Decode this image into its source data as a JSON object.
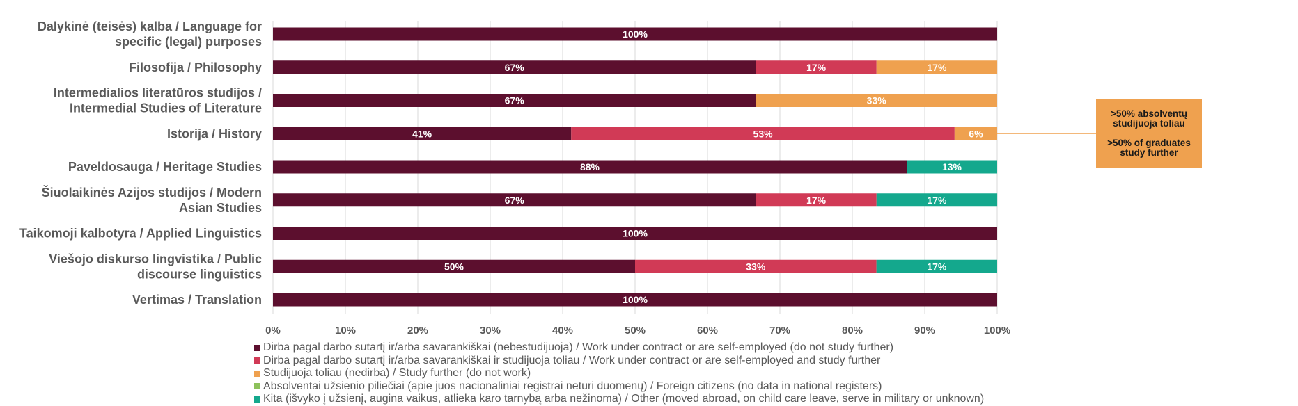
{
  "chart_data": {
    "type": "bar",
    "orientation": "horizontal",
    "stacked": "percent",
    "categories": [
      "Dalykinė (teisės) kalba / Language for specific (legal) purposes",
      "Filosofija / Philosophy",
      "Intermedialios literatūros studijos / Intermedial Studies of Literature",
      "Istorija / History",
      "Paveldosauga / Heritage Studies",
      "Šiuolaikinės Azijos studijos / Modern Asian Studies",
      "Taikomoji kalbotyra / Applied Linguistics",
      "Viešojo diskurso lingvistika / Public discourse linguistics",
      "Vertimas / Translation"
    ],
    "category_lines": [
      [
        "Dalykinė (teisės) kalba / Language for",
        "specific (legal) purposes"
      ],
      [
        "Filosofija / Philosophy"
      ],
      [
        "Intermedialios literatūros studijos /",
        "Intermedial Studies of Literature"
      ],
      [
        "Istorija / History"
      ],
      [
        "Paveldosauga / Heritage Studies"
      ],
      [
        "Šiuolaikinės Azijos studijos / Modern",
        "Asian Studies"
      ],
      [
        "Taikomoji kalbotyra / Applied Linguistics"
      ],
      [
        "Viešojo diskurso lingvistika / Public",
        "discourse linguistics"
      ],
      [
        "Vertimas / Translation"
      ]
    ],
    "series": [
      {
        "name": "Dirba pagal darbo sutartį ir/arba savarankiškai (nebestudijuoja) / Work under contract or are self-employed (do not study further)",
        "color": "#5c0f2e",
        "values": [
          100,
          66.67,
          66.67,
          41.18,
          87.5,
          66.67,
          100,
          50,
          100
        ],
        "labels": [
          "100%",
          "67%",
          "67%",
          "41%",
          "88%",
          "67%",
          "100%",
          "50%",
          "100%"
        ]
      },
      {
        "name": "Dirba pagal darbo sutartį ir/arba savarankiškai  ir studijuoja toliau / Work under contract or are self-employed and study further",
        "color": "#d13a56",
        "values": [
          0,
          16.67,
          0,
          52.94,
          0,
          16.67,
          0,
          33.33,
          0
        ],
        "labels": [
          "",
          "17%",
          "",
          "53%",
          "",
          "17%",
          "",
          "33%",
          ""
        ]
      },
      {
        "name": "Studijuoja toliau (nedirba) / Study further (do not work)",
        "color": "#efa14f",
        "values": [
          0,
          16.67,
          33.33,
          5.88,
          0,
          0,
          0,
          0,
          0
        ],
        "labels": [
          "",
          "17%",
          "33%",
          "6%",
          "",
          "",
          "",
          "",
          ""
        ]
      },
      {
        "name": "Absolventai užsienio piliečiai (apie juos nacionaliniai registrai neturi duomenų) / Foreign citizens (no data in national registers)",
        "color": "#8dc15b",
        "values": [
          0,
          0,
          0,
          0,
          0,
          0,
          0,
          0,
          0
        ],
        "labels": [
          "",
          "",
          "",
          "",
          "",
          "",
          "",
          "",
          ""
        ]
      },
      {
        "name": "Kita (išvyko į užsienį, augina vaikus, atlieka karo tarnybą arba nežinoma) / Other (moved abroad, on child care leave, serve in military or unknown)",
        "color": "#14a88d",
        "values": [
          0,
          0,
          0,
          0,
          12.5,
          16.67,
          0,
          16.67,
          0
        ],
        "labels": [
          "",
          "",
          "",
          "",
          "13%",
          "17%",
          "",
          "17%",
          ""
        ]
      }
    ],
    "x_ticks": [
      "0%",
      "10%",
      "20%",
      "30%",
      "40%",
      "50%",
      "60%",
      "70%",
      "80%",
      "90%",
      "100%"
    ],
    "xlim": [
      0,
      100
    ],
    "grid": "vertical",
    "legend_position": "bottom",
    "annotation": {
      "lines_lt": [
        ">50% absolventų",
        "studijuoja toliau"
      ],
      "lines_en": [
        ">50% of graduates",
        "study further"
      ],
      "color": "#efa14f",
      "points_to_category": "Istorija / History"
    }
  }
}
